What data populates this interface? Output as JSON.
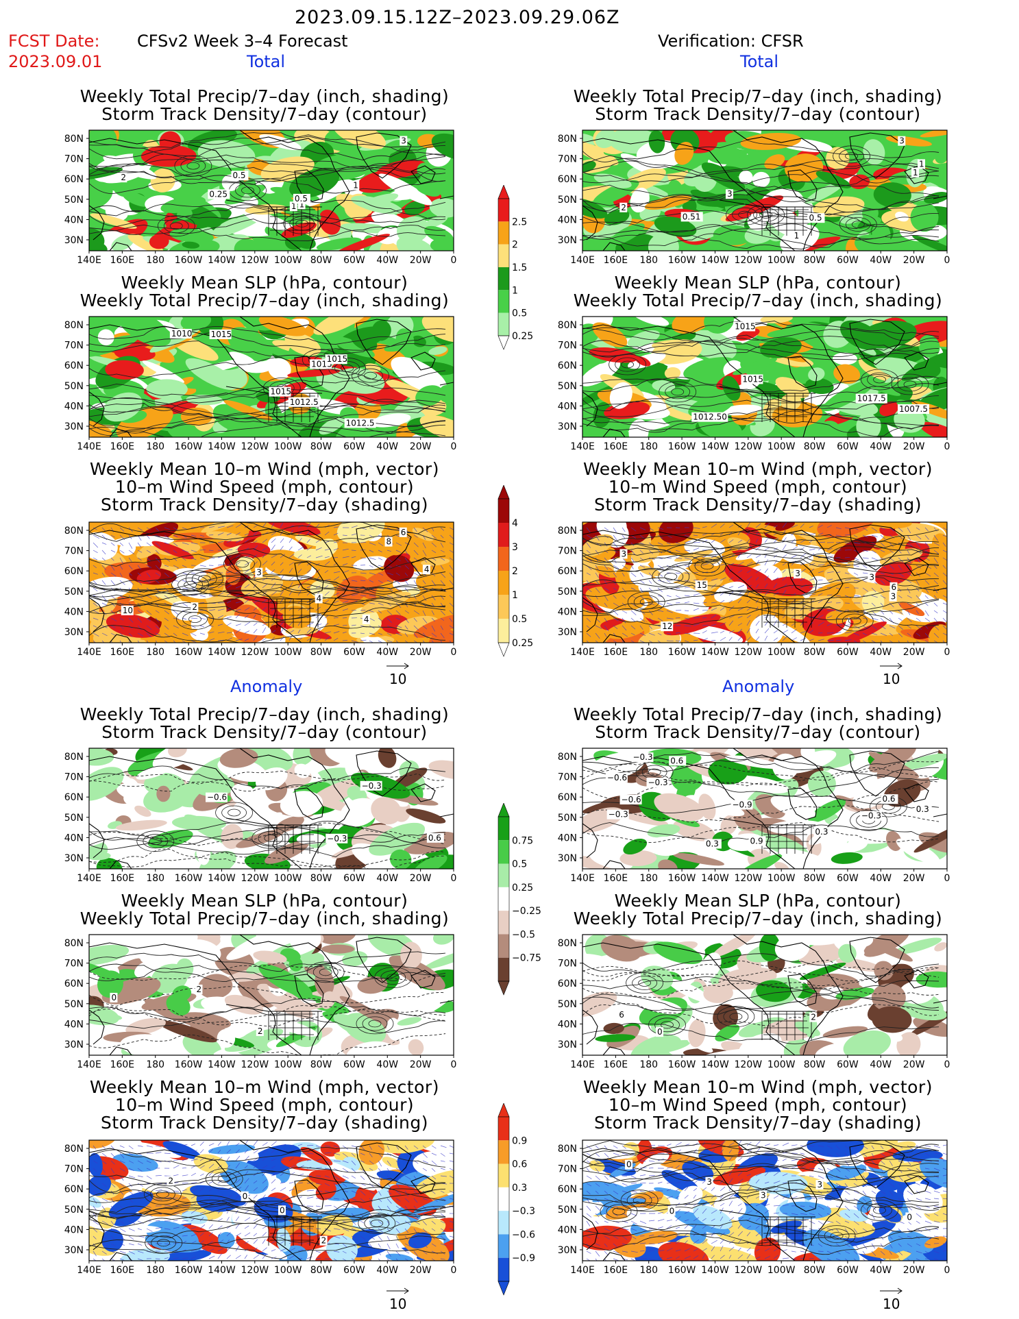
{
  "header": {
    "period": "2023.09.15.12Z–2023.09.29.06Z",
    "fcst_label": "FCST Date:",
    "fcst_date": "2023.09.01",
    "model": "CFSv2 Week 3–4 Forecast",
    "verification": "Verification: CFSR"
  },
  "sections": {
    "total": "Total",
    "anomaly": "Anomaly"
  },
  "titles": {
    "precip_storm": [
      "Weekly Total Precip/7–day (inch, shading)",
      "Storm Track Density/7–day (contour)"
    ],
    "slp_precip": [
      "Weekly Mean SLP (hPa, contour)",
      "Weekly Total Precip/7–day (inch, shading)"
    ],
    "wind_storm": [
      "Weekly Mean 10–m Wind (mph, vector)",
      "10–m Wind Speed (mph, contour)",
      "Storm Track Density/7–day (shading)"
    ]
  },
  "axes": {
    "lat": [
      "80N",
      "70N",
      "60N",
      "50N",
      "40N",
      "30N"
    ],
    "lon": [
      "140E",
      "160E",
      "180",
      "160W",
      "140W",
      "120W",
      "100W",
      "80W",
      "60W",
      "40W",
      "20W",
      "0"
    ]
  },
  "vector_ref": "10",
  "colorbars": {
    "precip_total": {
      "labels": [
        "2.5",
        "2",
        "1.5",
        "1",
        "0.5",
        "0.25"
      ],
      "colors": [
        "#e81c1c",
        "#f7a318",
        "#fde07a",
        "#1c9a1c",
        "#48d048",
        "#a8f0a8"
      ]
    },
    "storm_total": {
      "labels": [
        "4",
        "3",
        "2",
        "1",
        "0.5",
        "0.25"
      ],
      "colors": [
        "#9c0808",
        "#e01c1c",
        "#f2661c",
        "#f7a318",
        "#fcc858",
        "#fcee9c"
      ]
    },
    "precip_anom": {
      "labels": [
        "0.75",
        "0.5",
        "0.25",
        "−0.25",
        "−0.5",
        "−0.75"
      ],
      "colors": [
        "#18a018",
        "#48cc48",
        "#a8eca8",
        "#e8cfc4",
        "#b48c7c",
        "#6a4030"
      ]
    },
    "storm_anom": {
      "labels": [
        "0.9",
        "0.6",
        "0.3",
        "−0.3",
        "−0.6",
        "−0.9"
      ],
      "colors": [
        "#e83018",
        "#f79c28",
        "#fce070",
        "#b8e8fc",
        "#4ca0f0",
        "#1850d8"
      ]
    }
  },
  "map_labels": {
    "l1": [
      "1",
      "2",
      "3",
      "1",
      "0.25",
      "0.5",
      "1",
      "0.5"
    ],
    "r1": [
      "2",
      "1",
      "0.51",
      "3",
      "1",
      "3",
      "0.5",
      "1"
    ],
    "l2": [
      "1015",
      "1012.5",
      "1015",
      "1015",
      "1010",
      "1012.5",
      "1015"
    ],
    "r2": [
      "1017.5",
      "1007.5",
      "1012.50",
      "1015",
      "1015"
    ],
    "l3": [
      "2",
      "3",
      "4",
      "4",
      "10",
      "6",
      "8",
      "4"
    ],
    "r3": [
      "3",
      "3",
      "6",
      "12",
      "15",
      "3",
      "3"
    ],
    "l4": [
      "0.6",
      "−0.3",
      "−0.3",
      "−0.6"
    ],
    "r4": [
      "0.9",
      "0.3",
      "−0.3",
      "0.3",
      "−0.3",
      "−0.9",
      "−0.6",
      "0.3",
      "0.6",
      "−0.6",
      "−0.3",
      "−0.3",
      "0.6"
    ],
    "l5": [
      "0",
      "2",
      "2"
    ],
    "r5": [
      "0",
      "2",
      "6"
    ],
    "l6": [
      "2",
      "2",
      "0",
      "0"
    ],
    "r6": [
      "0",
      "3",
      "3",
      "0",
      "3",
      "0"
    ]
  }
}
